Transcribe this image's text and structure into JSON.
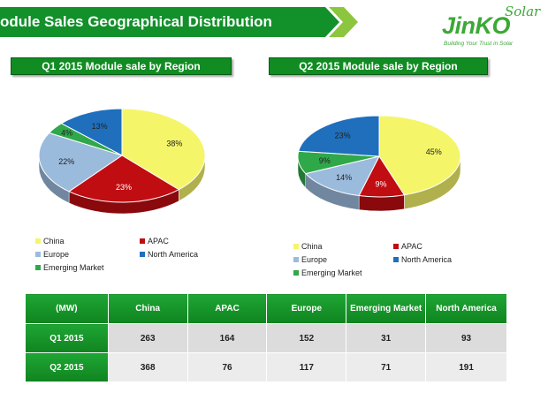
{
  "header": {
    "title": "odule Sales Geographical Distribution",
    "logo_main": "JinKO",
    "logo_solar": "Solar",
    "logo_tagline": "Building Your Trust in Solar"
  },
  "colors": {
    "accent_green": "#118c23",
    "china": "#f5f56a",
    "apac": "#c00d12",
    "europe": "#9bbbdd",
    "north_america": "#1f6fbd",
    "emerging": "#2fa84a"
  },
  "chart_data": [
    {
      "type": "pie",
      "title": "Q1 2015 Module sale by Region",
      "categories": [
        "China",
        "APAC",
        "Europe",
        "Emerging Market",
        "North America"
      ],
      "values": [
        38,
        23,
        22,
        4,
        13
      ],
      "labels": [
        "38%",
        "23%",
        "22%",
        "4%",
        "13%"
      ],
      "legend_position": "bottom"
    },
    {
      "type": "pie",
      "title": "Q2 2015  Module sale by Region",
      "categories": [
        "China",
        "APAC",
        "Europe",
        "Emerging Market",
        "North America"
      ],
      "values": [
        45,
        9,
        14,
        9,
        23
      ],
      "labels": [
        "45%",
        "9%",
        "14%",
        "9%",
        "23%"
      ],
      "legend_position": "bottom"
    }
  ],
  "legend": {
    "china": "China",
    "apac": "APAC",
    "europe": "Europe",
    "north_america": "North America",
    "emerging": "Emerging Market"
  },
  "table": {
    "headers": [
      "(MW)",
      "China",
      "APAC",
      "Europe",
      "Emerging Market",
      "North America"
    ],
    "rows": [
      {
        "label": "Q1 2015",
        "values": [
          "263",
          "164",
          "152",
          "31",
          "93"
        ]
      },
      {
        "label": "Q2 2015",
        "values": [
          "368",
          "76",
          "117",
          "71",
          "191"
        ]
      }
    ]
  }
}
